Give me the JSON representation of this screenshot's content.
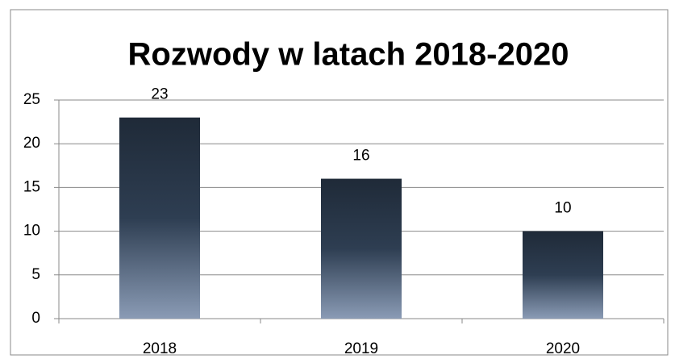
{
  "chart_data": {
    "type": "bar",
    "title": "Rozwody w latach 2018-2020",
    "categories": [
      "2018",
      "2019",
      "2020"
    ],
    "values": [
      23,
      16,
      10
    ],
    "color": "#1f2a38",
    "ylim": [
      0,
      25
    ],
    "yticks": [
      0,
      5,
      10,
      15,
      20,
      25
    ],
    "grid": true
  }
}
